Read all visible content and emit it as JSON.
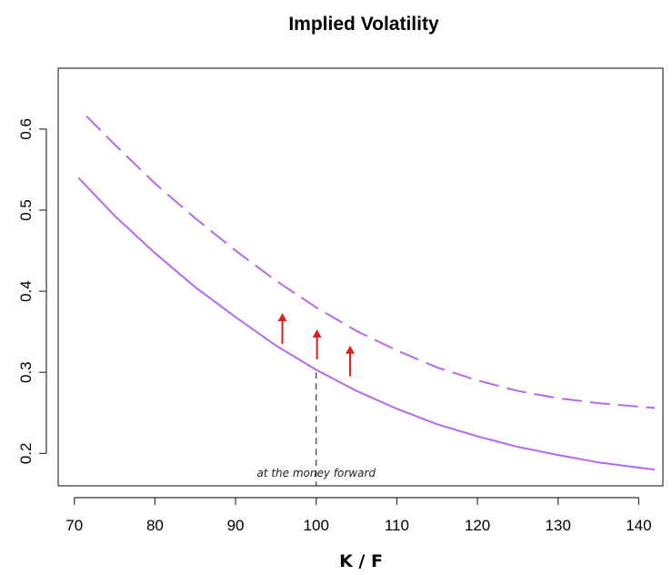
{
  "chart_data": {
    "type": "line",
    "title": "Implied Volatility",
    "xlabel": "K / F",
    "ylabel": "",
    "xlim": [
      68,
      143
    ],
    "ylim": [
      0.16,
      0.675
    ],
    "xticks": [
      70,
      80,
      90,
      100,
      110,
      120,
      130,
      140
    ],
    "yticks": [
      0.2,
      0.3,
      0.4,
      0.5,
      0.6
    ],
    "grid": false,
    "line_color": "#b469f0",
    "series": [
      {
        "style": "solid",
        "x": [
          70.5,
          75,
          80,
          85,
          90,
          95,
          100,
          105,
          110,
          115,
          120,
          125,
          130,
          135,
          142
        ],
        "y": [
          0.54,
          0.493,
          0.447,
          0.405,
          0.368,
          0.333,
          0.303,
          0.277,
          0.255,
          0.236,
          0.221,
          0.208,
          0.198,
          0.189,
          0.18
        ]
      },
      {
        "style": "dashed",
        "x": [
          71.5,
          75,
          80,
          85,
          90,
          95,
          100,
          105,
          110,
          115,
          120,
          125,
          130,
          135,
          142
        ],
        "y": [
          0.616,
          0.581,
          0.533,
          0.49,
          0.45,
          0.413,
          0.38,
          0.351,
          0.327,
          0.306,
          0.29,
          0.277,
          0.268,
          0.262,
          0.256
        ]
      }
    ],
    "arrow_color": "#e11d1d",
    "arrows": [
      {
        "x": 95.8,
        "from": 0.335,
        "to": 0.373
      },
      {
        "x": 100.1,
        "from": 0.316,
        "to": 0.353
      },
      {
        "x": 104.2,
        "from": 0.295,
        "to": 0.333
      }
    ],
    "vline": {
      "x": 100,
      "from": 0.3,
      "to": 0.16
    },
    "annotation": {
      "text": "at the money forward",
      "x": 100,
      "y": 0.171
    }
  }
}
